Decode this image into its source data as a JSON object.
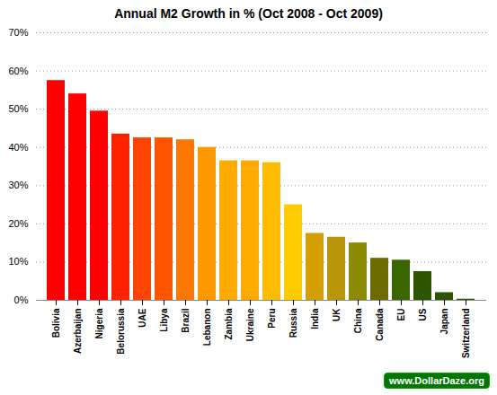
{
  "chart_data": {
    "type": "bar",
    "title": "Annual M2 Growth in % (Oct 2008 - Oct 2009)",
    "categories": [
      "Bolivia",
      "Azerbaijan",
      "Nigeria",
      "Belorussia",
      "UAE",
      "Libya",
      "Brazil",
      "Lebanon",
      "Zambia",
      "Ukraine",
      "Peru",
      "Russia",
      "India",
      "UK",
      "China",
      "Canada",
      "EU",
      "US",
      "Japan",
      "Switzerland"
    ],
    "values": [
      57.5,
      54.0,
      49.5,
      43.5,
      42.5,
      42.5,
      42.0,
      40.0,
      36.5,
      36.5,
      36.0,
      25.0,
      17.5,
      16.5,
      15.0,
      11.0,
      10.5,
      7.5,
      2.0,
      0.3
    ],
    "colors": [
      "#ff0000",
      "#ff0000",
      "#ff0000",
      "#ff2200",
      "#ff4400",
      "#ff5500",
      "#ff7700",
      "#ff9900",
      "#ffaa00",
      "#ffaa00",
      "#ffbb00",
      "#ffcc00",
      "#d4a000",
      "#b8980a",
      "#8b8b00",
      "#6b6b00",
      "#3a6600",
      "#2d5500",
      "#2d5500",
      "#2d5500"
    ],
    "ylim": [
      0,
      70
    ],
    "yticks": [
      {
        "value": 0,
        "label": "0%"
      },
      {
        "value": 10,
        "label": "10%"
      },
      {
        "value": 20,
        "label": "20%"
      },
      {
        "value": 30,
        "label": "30%"
      },
      {
        "value": 40,
        "label": "40%"
      },
      {
        "value": 50,
        "label": "50%"
      },
      {
        "value": 60,
        "label": "60%"
      },
      {
        "value": 70,
        "label": "70%"
      }
    ],
    "grid": true,
    "annotations": [
      "www.DollarDaze.org"
    ]
  }
}
